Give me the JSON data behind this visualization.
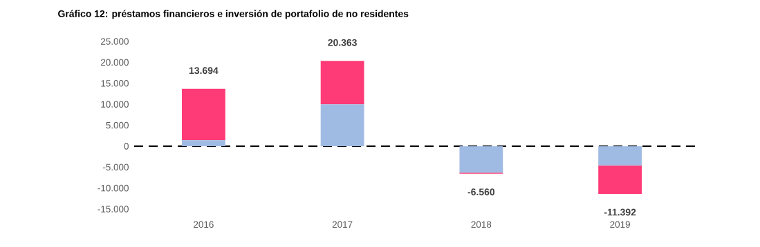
{
  "chart_data": {
    "type": "bar",
    "title": "Gráfico 12: préstamos financieros e inversión de portafolio de no residentes",
    "categories": [
      "2016",
      "2017",
      "2018",
      "2019"
    ],
    "stacked": true,
    "series": [
      {
        "color": "#a0bbe3",
        "values": [
          1400,
          10000,
          -6300,
          -4600
        ]
      },
      {
        "color": "#ff3b77",
        "values": [
          12294,
          10363,
          -260,
          -6792
        ]
      }
    ],
    "totals": [
      "13.694",
      "20.363",
      "-6.560",
      "-11.392"
    ],
    "ylim": [
      -15000,
      25000
    ],
    "yticks": [
      {
        "value": -15000,
        "label": "-15.000"
      },
      {
        "value": -10000,
        "label": "-10.000"
      },
      {
        "value": -5000,
        "label": "-5.000"
      },
      {
        "value": 0,
        "label": "0"
      },
      {
        "value": 5000,
        "label": "5.000"
      },
      {
        "value": 10000,
        "label": "10.000"
      },
      {
        "value": 15000,
        "label": "15.000"
      },
      {
        "value": 20000,
        "label": "20.000"
      },
      {
        "value": 25000,
        "label": "25.000"
      }
    ],
    "ref_lines": [
      {
        "axis": "y",
        "value": 0,
        "color": "#000000",
        "line_style": "dashed"
      }
    ]
  }
}
